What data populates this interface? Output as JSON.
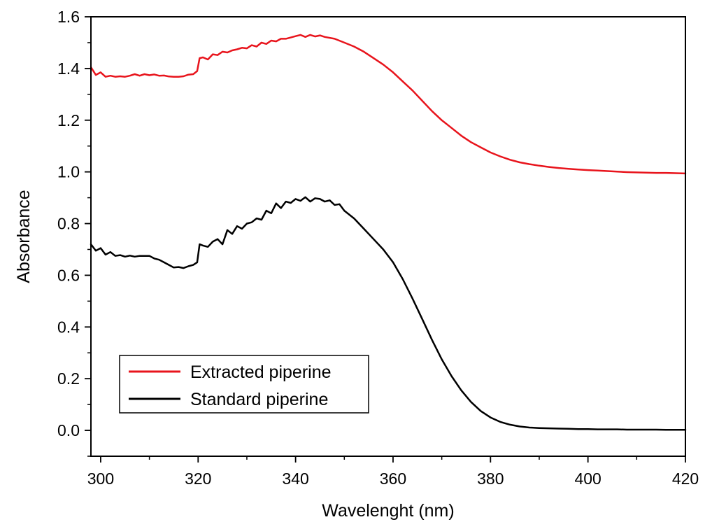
{
  "chart_data": {
    "type": "line",
    "xlabel": "Wavelenght (nm)",
    "ylabel": "Absorbance",
    "xlim": [
      298,
      420
    ],
    "ylim": [
      -0.1,
      1.6
    ],
    "x_ticks": [
      300,
      320,
      340,
      360,
      380,
      400,
      420
    ],
    "x_tick_labels": [
      "300",
      "320",
      "340",
      "360",
      "380",
      "400",
      "420"
    ],
    "y_ticks": [
      0.0,
      0.2,
      0.4,
      0.6,
      0.8,
      1.0,
      1.2,
      1.4,
      1.6
    ],
    "y_tick_labels": [
      "0.0",
      "0.2",
      "0.4",
      "0.6",
      "0.8",
      "1.0",
      "1.2",
      "1.4",
      "1.6"
    ],
    "grid": false,
    "legend_position": "bottom-left",
    "series": [
      {
        "name": "Extracted piperine",
        "color": "#e8141c",
        "x": [
          298,
          299,
          300,
          301,
          302,
          303,
          304,
          305,
          306,
          307,
          308,
          309,
          310,
          311,
          312,
          313,
          314,
          315,
          316,
          317,
          318,
          319,
          319.8,
          320.3,
          321,
          322,
          323,
          324,
          325,
          326,
          327,
          328,
          329,
          330,
          331,
          332,
          333,
          334,
          335,
          336,
          337,
          338,
          339,
          340,
          341,
          342,
          343,
          344,
          345,
          346,
          348,
          350,
          352,
          354,
          356,
          358,
          360,
          362,
          364,
          366,
          368,
          370,
          372,
          374,
          376,
          378,
          380,
          382,
          384,
          386,
          388,
          390,
          392,
          394,
          396,
          398,
          400,
          402,
          404,
          406,
          408,
          410,
          412,
          414,
          416,
          418,
          420
        ],
        "y": [
          1.405,
          1.375,
          1.385,
          1.368,
          1.372,
          1.368,
          1.37,
          1.368,
          1.372,
          1.378,
          1.372,
          1.378,
          1.374,
          1.377,
          1.372,
          1.373,
          1.369,
          1.368,
          1.368,
          1.37,
          1.376,
          1.378,
          1.39,
          1.44,
          1.443,
          1.435,
          1.455,
          1.452,
          1.465,
          1.462,
          1.47,
          1.474,
          1.48,
          1.478,
          1.49,
          1.485,
          1.5,
          1.495,
          1.508,
          1.505,
          1.515,
          1.515,
          1.52,
          1.525,
          1.53,
          1.522,
          1.53,
          1.524,
          1.528,
          1.522,
          1.515,
          1.5,
          1.485,
          1.465,
          1.44,
          1.415,
          1.385,
          1.35,
          1.315,
          1.275,
          1.235,
          1.2,
          1.17,
          1.14,
          1.115,
          1.095,
          1.075,
          1.06,
          1.047,
          1.037,
          1.03,
          1.024,
          1.019,
          1.015,
          1.012,
          1.009,
          1.007,
          1.005,
          1.003,
          1.001,
          0.999,
          0.998,
          0.997,
          0.996,
          0.996,
          0.995,
          0.994
        ]
      },
      {
        "name": "Standard piperine",
        "color": "#000000",
        "x": [
          298,
          299,
          300,
          301,
          302,
          303,
          304,
          305,
          306,
          307,
          308,
          309,
          310,
          311,
          312,
          313,
          314,
          315,
          316,
          317,
          318,
          319,
          319.8,
          320.3,
          321,
          322,
          323,
          324,
          325,
          326,
          327,
          328,
          329,
          330,
          331,
          332,
          333,
          334,
          335,
          336,
          337,
          338,
          339,
          340,
          341,
          342,
          343,
          344,
          345,
          346,
          347,
          348,
          349,
          350,
          352,
          354,
          356,
          358,
          360,
          362,
          364,
          366,
          368,
          370,
          372,
          374,
          376,
          378,
          380,
          382,
          384,
          386,
          388,
          390,
          392,
          394,
          396,
          398,
          400,
          402,
          404,
          406,
          408,
          410,
          412,
          414,
          416,
          418,
          420
        ],
        "y": [
          0.72,
          0.695,
          0.705,
          0.68,
          0.69,
          0.675,
          0.678,
          0.672,
          0.676,
          0.672,
          0.675,
          0.675,
          0.675,
          0.665,
          0.66,
          0.65,
          0.64,
          0.63,
          0.632,
          0.628,
          0.635,
          0.64,
          0.65,
          0.72,
          0.715,
          0.71,
          0.73,
          0.74,
          0.72,
          0.775,
          0.76,
          0.79,
          0.78,
          0.8,
          0.805,
          0.82,
          0.815,
          0.85,
          0.84,
          0.878,
          0.86,
          0.885,
          0.88,
          0.895,
          0.888,
          0.902,
          0.885,
          0.898,
          0.895,
          0.885,
          0.89,
          0.872,
          0.875,
          0.85,
          0.82,
          0.78,
          0.74,
          0.7,
          0.65,
          0.585,
          0.51,
          0.43,
          0.35,
          0.275,
          0.21,
          0.155,
          0.11,
          0.075,
          0.05,
          0.033,
          0.022,
          0.015,
          0.011,
          0.009,
          0.008,
          0.007,
          0.006,
          0.005,
          0.005,
          0.004,
          0.004,
          0.004,
          0.003,
          0.003,
          0.003,
          0.003,
          0.002,
          0.002,
          0.002
        ]
      }
    ]
  }
}
